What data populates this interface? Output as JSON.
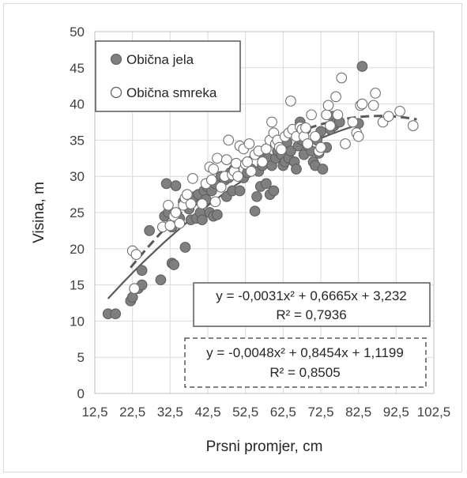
{
  "chart_data": {
    "type": "scatter",
    "title": "",
    "xlabel": "Prsni promjer, cm",
    "ylabel": "Visina, m",
    "xlim": [
      12.5,
      102.5
    ],
    "ylim": [
      0,
      50
    ],
    "x_ticks": [
      12.5,
      22.5,
      32.5,
      42.5,
      52.5,
      62.5,
      72.5,
      82.5,
      92.5,
      102.5
    ],
    "x_tick_labels": [
      "12,5",
      "22,5",
      "32,5",
      "42,5",
      "52,5",
      "62,5",
      "72,5",
      "82,5",
      "92,5",
      "102,5"
    ],
    "y_ticks": [
      0,
      5,
      10,
      15,
      20,
      25,
      30,
      35,
      40,
      45,
      50
    ],
    "y_tick_labels": [
      "0",
      "5",
      "10",
      "15",
      "20",
      "25",
      "30",
      "35",
      "40",
      "45",
      "50"
    ],
    "grid": true,
    "legend_position": "top-left",
    "series": [
      {
        "name": "Obična jela",
        "marker": "filled-circle",
        "color": "#7f7f7f",
        "trendline": {
          "style": "solid",
          "a": -0.0031,
          "b": 0.6665,
          "c": 3.232,
          "x_range": [
            16,
            83
          ],
          "equation": "y = -0,0031x² + 0,6665x + 3,232",
          "r2": "R² = 0,7936"
        },
        "points": [
          [
            16,
            11
          ],
          [
            18,
            11
          ],
          [
            22,
            12.8
          ],
          [
            22.5,
            13.3
          ],
          [
            24,
            14.5
          ],
          [
            25,
            15
          ],
          [
            25,
            17
          ],
          [
            27,
            22.5
          ],
          [
            30,
            15.7
          ],
          [
            31,
            24.5
          ],
          [
            31.5,
            29
          ],
          [
            32,
            25
          ],
          [
            33,
            23
          ],
          [
            33,
            18
          ],
          [
            33.5,
            17.8
          ],
          [
            34,
            28.7
          ],
          [
            35,
            24.2
          ],
          [
            36,
            26.5
          ],
          [
            36.5,
            20.2
          ],
          [
            37,
            26
          ],
          [
            37.5,
            25.5
          ],
          [
            38,
            24
          ],
          [
            38.5,
            26.5
          ],
          [
            39,
            27.2
          ],
          [
            39.5,
            24.2
          ],
          [
            40,
            27.5
          ],
          [
            40.5,
            25
          ],
          [
            41,
            24
          ],
          [
            41.5,
            28
          ],
          [
            42,
            26.8
          ],
          [
            42.5,
            28.5
          ],
          [
            43,
            25
          ],
          [
            43.5,
            28
          ],
          [
            44,
            24.5
          ],
          [
            44.5,
            29
          ],
          [
            45,
            24.7
          ],
          [
            46,
            30
          ],
          [
            47,
            29.5
          ],
          [
            47.5,
            27.2
          ],
          [
            48,
            29.8
          ],
          [
            48.5,
            30.5
          ],
          [
            49,
            28
          ],
          [
            49.5,
            31
          ],
          [
            50,
            30.2
          ],
          [
            51,
            28
          ],
          [
            52,
            29.8
          ],
          [
            53,
            30.5
          ],
          [
            54,
            31
          ],
          [
            55,
            25.2
          ],
          [
            55.5,
            27.2
          ],
          [
            56,
            30.7
          ],
          [
            56.5,
            28.6
          ],
          [
            57,
            31.5
          ],
          [
            57.5,
            33
          ],
          [
            58,
            29
          ],
          [
            58.5,
            32.5
          ],
          [
            59,
            27.5
          ],
          [
            59.5,
            31.5
          ],
          [
            60,
            28
          ],
          [
            60.5,
            32.5
          ],
          [
            61,
            33.5
          ],
          [
            62,
            33
          ],
          [
            62.5,
            31.5
          ],
          [
            63,
            32
          ],
          [
            63.5,
            34.7
          ],
          [
            64,
            32.5
          ],
          [
            64.5,
            33.5
          ],
          [
            65,
            36
          ],
          [
            65.5,
            32
          ],
          [
            66,
            31
          ],
          [
            66.5,
            34.2
          ],
          [
            67,
            37.5
          ],
          [
            67.5,
            35
          ],
          [
            68,
            33
          ],
          [
            68.5,
            36.5
          ],
          [
            69,
            34.2
          ],
          [
            70,
            33.5
          ],
          [
            70.5,
            32
          ],
          [
            71,
            31.5
          ],
          [
            71.5,
            35
          ],
          [
            72,
            33.2
          ],
          [
            72.5,
            36.2
          ],
          [
            73,
            31
          ],
          [
            74,
            34
          ],
          [
            75,
            36.5
          ],
          [
            75.5,
            38.3
          ],
          [
            76,
            37
          ],
          [
            76.5,
            37.4
          ],
          [
            77.5,
            37.5
          ],
          [
            82.5,
            37.3
          ],
          [
            83.5,
            45.2
          ]
        ]
      },
      {
        "name": "Obična smreka",
        "marker": "open-circle",
        "color": "#7f7f7f",
        "trendline": {
          "style": "dashed",
          "a": -0.0048,
          "b": 0.8454,
          "c": 1.1199,
          "x_range": [
            22,
            98
          ],
          "equation": "y = -0,0048x² + 0,8454x + 1,1199",
          "r2": "R² = 0,8505"
        },
        "points": [
          [
            22.5,
            19.7
          ],
          [
            23.5,
            19.2
          ],
          [
            23,
            14.5
          ],
          [
            30.5,
            23
          ],
          [
            32,
            26
          ],
          [
            32.5,
            23.2
          ],
          [
            33.5,
            24.5
          ],
          [
            34,
            25
          ],
          [
            35,
            23.5
          ],
          [
            36,
            26
          ],
          [
            36.5,
            27
          ],
          [
            37,
            27.5
          ],
          [
            38,
            26.2
          ],
          [
            38.5,
            29.7
          ],
          [
            41,
            26.2
          ],
          [
            42,
            29
          ],
          [
            43,
            31.3
          ],
          [
            43.5,
            29.5
          ],
          [
            44,
            31
          ],
          [
            44.5,
            26.5
          ],
          [
            45,
            32.5
          ],
          [
            46,
            28.5
          ],
          [
            47,
            30
          ],
          [
            47.5,
            32.3
          ],
          [
            48,
            35
          ],
          [
            49,
            30.2
          ],
          [
            49.5,
            30.7
          ],
          [
            50,
            31.8
          ],
          [
            50.5,
            30
          ],
          [
            51,
            34.2
          ],
          [
            52,
            33.8
          ],
          [
            52.5,
            31.7
          ],
          [
            53,
            32
          ],
          [
            53.5,
            34.5
          ],
          [
            54,
            30.7
          ],
          [
            55,
            33
          ],
          [
            56,
            33.5
          ],
          [
            57,
            32
          ],
          [
            58,
            33.8
          ],
          [
            59,
            35
          ],
          [
            59.5,
            37.5
          ],
          [
            60,
            36
          ],
          [
            60.5,
            34.5
          ],
          [
            61,
            35
          ],
          [
            61.5,
            34
          ],
          [
            62,
            33.7
          ],
          [
            63,
            35.5
          ],
          [
            64,
            36
          ],
          [
            64.5,
            40.4
          ],
          [
            65,
            36.5
          ],
          [
            66,
            35.5
          ],
          [
            67,
            36.8
          ],
          [
            67.5,
            36.5
          ],
          [
            68,
            35.5
          ],
          [
            68.5,
            36.7
          ],
          [
            69,
            34.5
          ],
          [
            70,
            38.5
          ],
          [
            71,
            35.5
          ],
          [
            72,
            33.5
          ],
          [
            72.5,
            34
          ],
          [
            74,
            38.5
          ],
          [
            74.5,
            39.8
          ],
          [
            75,
            37
          ],
          [
            76.5,
            41
          ],
          [
            77,
            38.5
          ],
          [
            78,
            43.6
          ],
          [
            79,
            34.5
          ],
          [
            81,
            37.5
          ],
          [
            82,
            36
          ],
          [
            82.5,
            35.5
          ],
          [
            83,
            39.8
          ],
          [
            83.5,
            40
          ],
          [
            86.5,
            39.8
          ],
          [
            87,
            41.5
          ],
          [
            89,
            37.5
          ],
          [
            90.5,
            38.3
          ],
          [
            93.5,
            39
          ],
          [
            97,
            37
          ]
        ]
      }
    ],
    "annotations": {
      "solid_equation": "y = -0,0031x² + 0,6665x + 3,232",
      "solid_r2": "R² = 0,7936",
      "dashed_equation": "y = -0,0048x² + 0,8454x + 1,1199",
      "dashed_r2": "R² = 0,8505"
    }
  }
}
